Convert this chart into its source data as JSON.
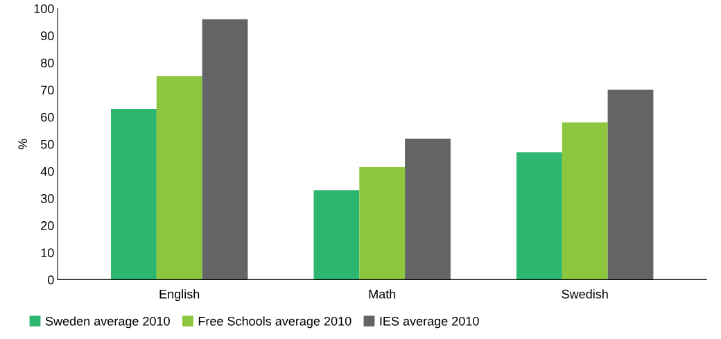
{
  "chart_data": {
    "type": "bar",
    "ylabel": "%",
    "categories": [
      "English",
      "Math",
      "Swedish"
    ],
    "series": [
      {
        "name": "Sweden average 2010",
        "color": "#2db670",
        "values": [
          63,
          33,
          47
        ]
      },
      {
        "name": "Free Schools average 2010",
        "color": "#8dc63f",
        "values": [
          75,
          41.5,
          58
        ]
      },
      {
        "name": "IES average 2010",
        "color": "#636466",
        "values": [
          96,
          52,
          70
        ]
      }
    ],
    "ylim": [
      0,
      100
    ],
    "yticks": [
      0,
      10,
      20,
      30,
      40,
      50,
      60,
      70,
      80,
      90,
      100
    ],
    "grid": false,
    "legend": "bottom"
  }
}
